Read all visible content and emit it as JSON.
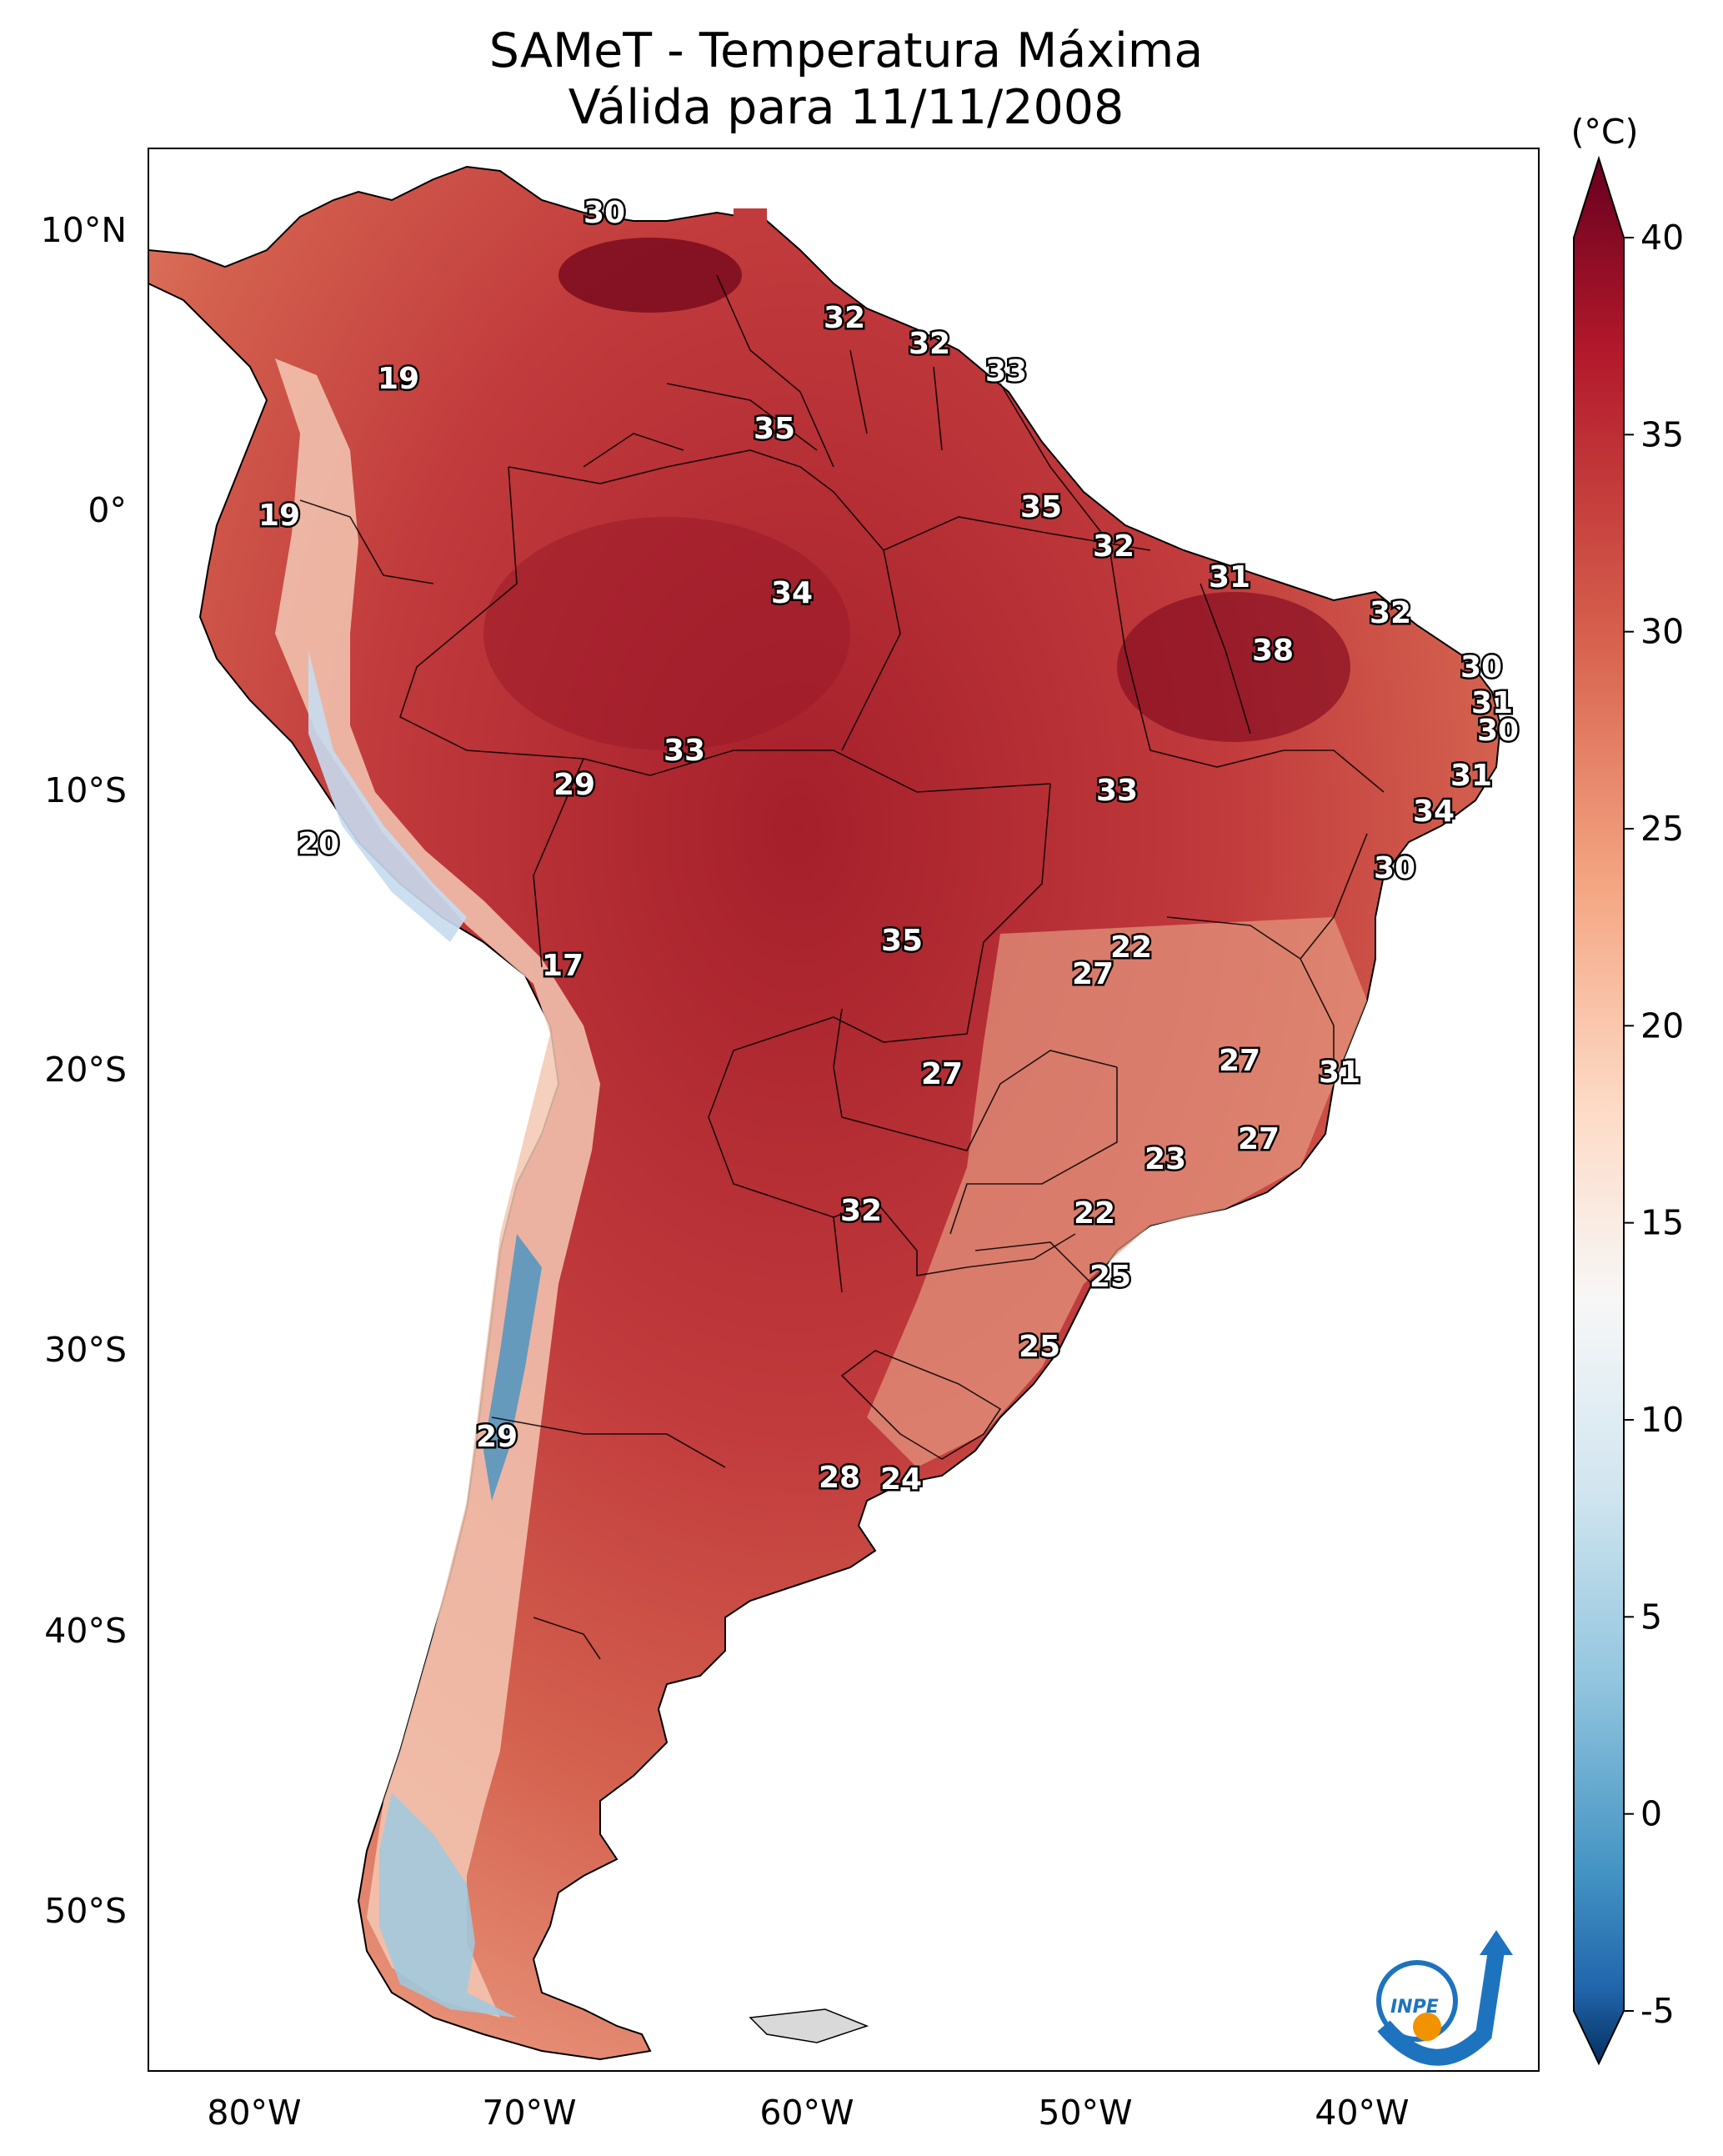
{
  "title_line1": "SAMeT - Temperatura Máxima",
  "title_line2": "Válida para 11/11/2008",
  "colorbar": {
    "unit": "(°C)",
    "ticks": [
      "40",
      "35",
      "30",
      "25",
      "20",
      "15",
      "10",
      "5",
      "0",
      "-5"
    ],
    "colors": {
      "max": "#67001f",
      "warm": "#c13a3c",
      "mild": "#f4a582",
      "neutral": "#f7f7f7",
      "cool": "#92c5de",
      "cold": "#2166ac",
      "min": "#053061"
    }
  },
  "axes": {
    "lon_labels": [
      "80°W",
      "70°W",
      "60°W",
      "50°W",
      "40°W"
    ],
    "lat_labels": [
      "10°N",
      "0°",
      "10°S",
      "20°S",
      "30°S",
      "40°S",
      "50°S"
    ]
  },
  "stations": [
    "30",
    "19",
    "32",
    "32",
    "33",
    "35",
    "19",
    "35",
    "32",
    "34",
    "31",
    "32",
    "38",
    "30",
    "31",
    "30",
    "33",
    "29",
    "31",
    "20",
    "33",
    "34",
    "30",
    "22",
    "35",
    "27",
    "17",
    "27",
    "27",
    "31",
    "27",
    "23",
    "32",
    "22",
    "25",
    "25",
    "29",
    "28",
    "24"
  ],
  "logo": {
    "text": "INPE"
  }
}
